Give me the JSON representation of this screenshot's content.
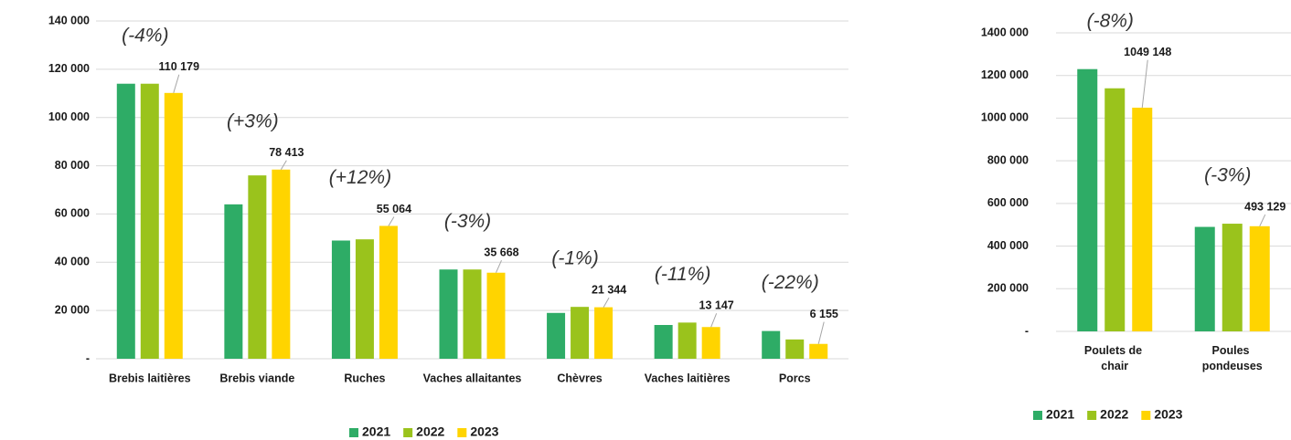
{
  "chart_data": [
    {
      "type": "bar",
      "categories": [
        "Brebis laitières",
        "Brebis viande",
        "Ruches",
        "Vaches allaitantes",
        "Chèvres",
        "Vaches laitières",
        "Porcs"
      ],
      "series": [
        {
          "name": "2021",
          "color": "#2eac66",
          "values": [
            114000,
            64000,
            49000,
            37000,
            19000,
            14000,
            11500
          ]
        },
        {
          "name": "2022",
          "color": "#9ac31c",
          "values": [
            114000,
            76000,
            49500,
            37000,
            21500,
            15000,
            8000
          ]
        },
        {
          "name": "2023",
          "color": "#ffd400",
          "values": [
            110179,
            78413,
            55064,
            35668,
            21344,
            13147,
            6155
          ],
          "value_labels": [
            "110 179",
            "78 413",
            "55 064",
            "35 668",
            "21 344",
            "13 147",
            "6 155"
          ]
        }
      ],
      "annotations": [
        "(-4%)",
        "(+3%)",
        "(+12%)",
        "(-3%)",
        "(-1%)",
        "(-11%)",
        "(-22%)"
      ],
      "ylim": [
        0,
        140000
      ],
      "yticks": [
        {
          "value": 0,
          "label": "-"
        },
        {
          "value": 20000,
          "label": "20 000"
        },
        {
          "value": 40000,
          "label": "40 000"
        },
        {
          "value": 60000,
          "label": "60 000"
        },
        {
          "value": 80000,
          "label": "80 000"
        },
        {
          "value": 100000,
          "label": "100 000"
        },
        {
          "value": 120000,
          "label": "120 000"
        },
        {
          "value": 140000,
          "label": "140 000"
        }
      ],
      "grid": true
    },
    {
      "type": "bar",
      "categories": [
        "Poulets de chair",
        "Poules pondeuses"
      ],
      "series": [
        {
          "name": "2021",
          "color": "#2eac66",
          "values": [
            1230000,
            490000
          ]
        },
        {
          "name": "2022",
          "color": "#9ac31c",
          "values": [
            1140000,
            505000
          ]
        },
        {
          "name": "2023",
          "color": "#ffd400",
          "values": [
            1049148,
            493129
          ],
          "value_labels": [
            "1049 148",
            "493 129"
          ]
        }
      ],
      "annotations": [
        "(-8%)",
        "(-3%)"
      ],
      "ylim": [
        0,
        1400000
      ],
      "yticks": [
        {
          "value": 0,
          "label": "-"
        },
        {
          "value": 200000,
          "label": "200 000"
        },
        {
          "value": 400000,
          "label": "400 000"
        },
        {
          "value": 600000,
          "label": "600 000"
        },
        {
          "value": 800000,
          "label": "800 000"
        },
        {
          "value": 1000000,
          "label": "1000 000"
        },
        {
          "value": 1200000,
          "label": "1200 000"
        },
        {
          "value": 1400000,
          "label": "1400 000"
        }
      ],
      "grid": true
    }
  ]
}
